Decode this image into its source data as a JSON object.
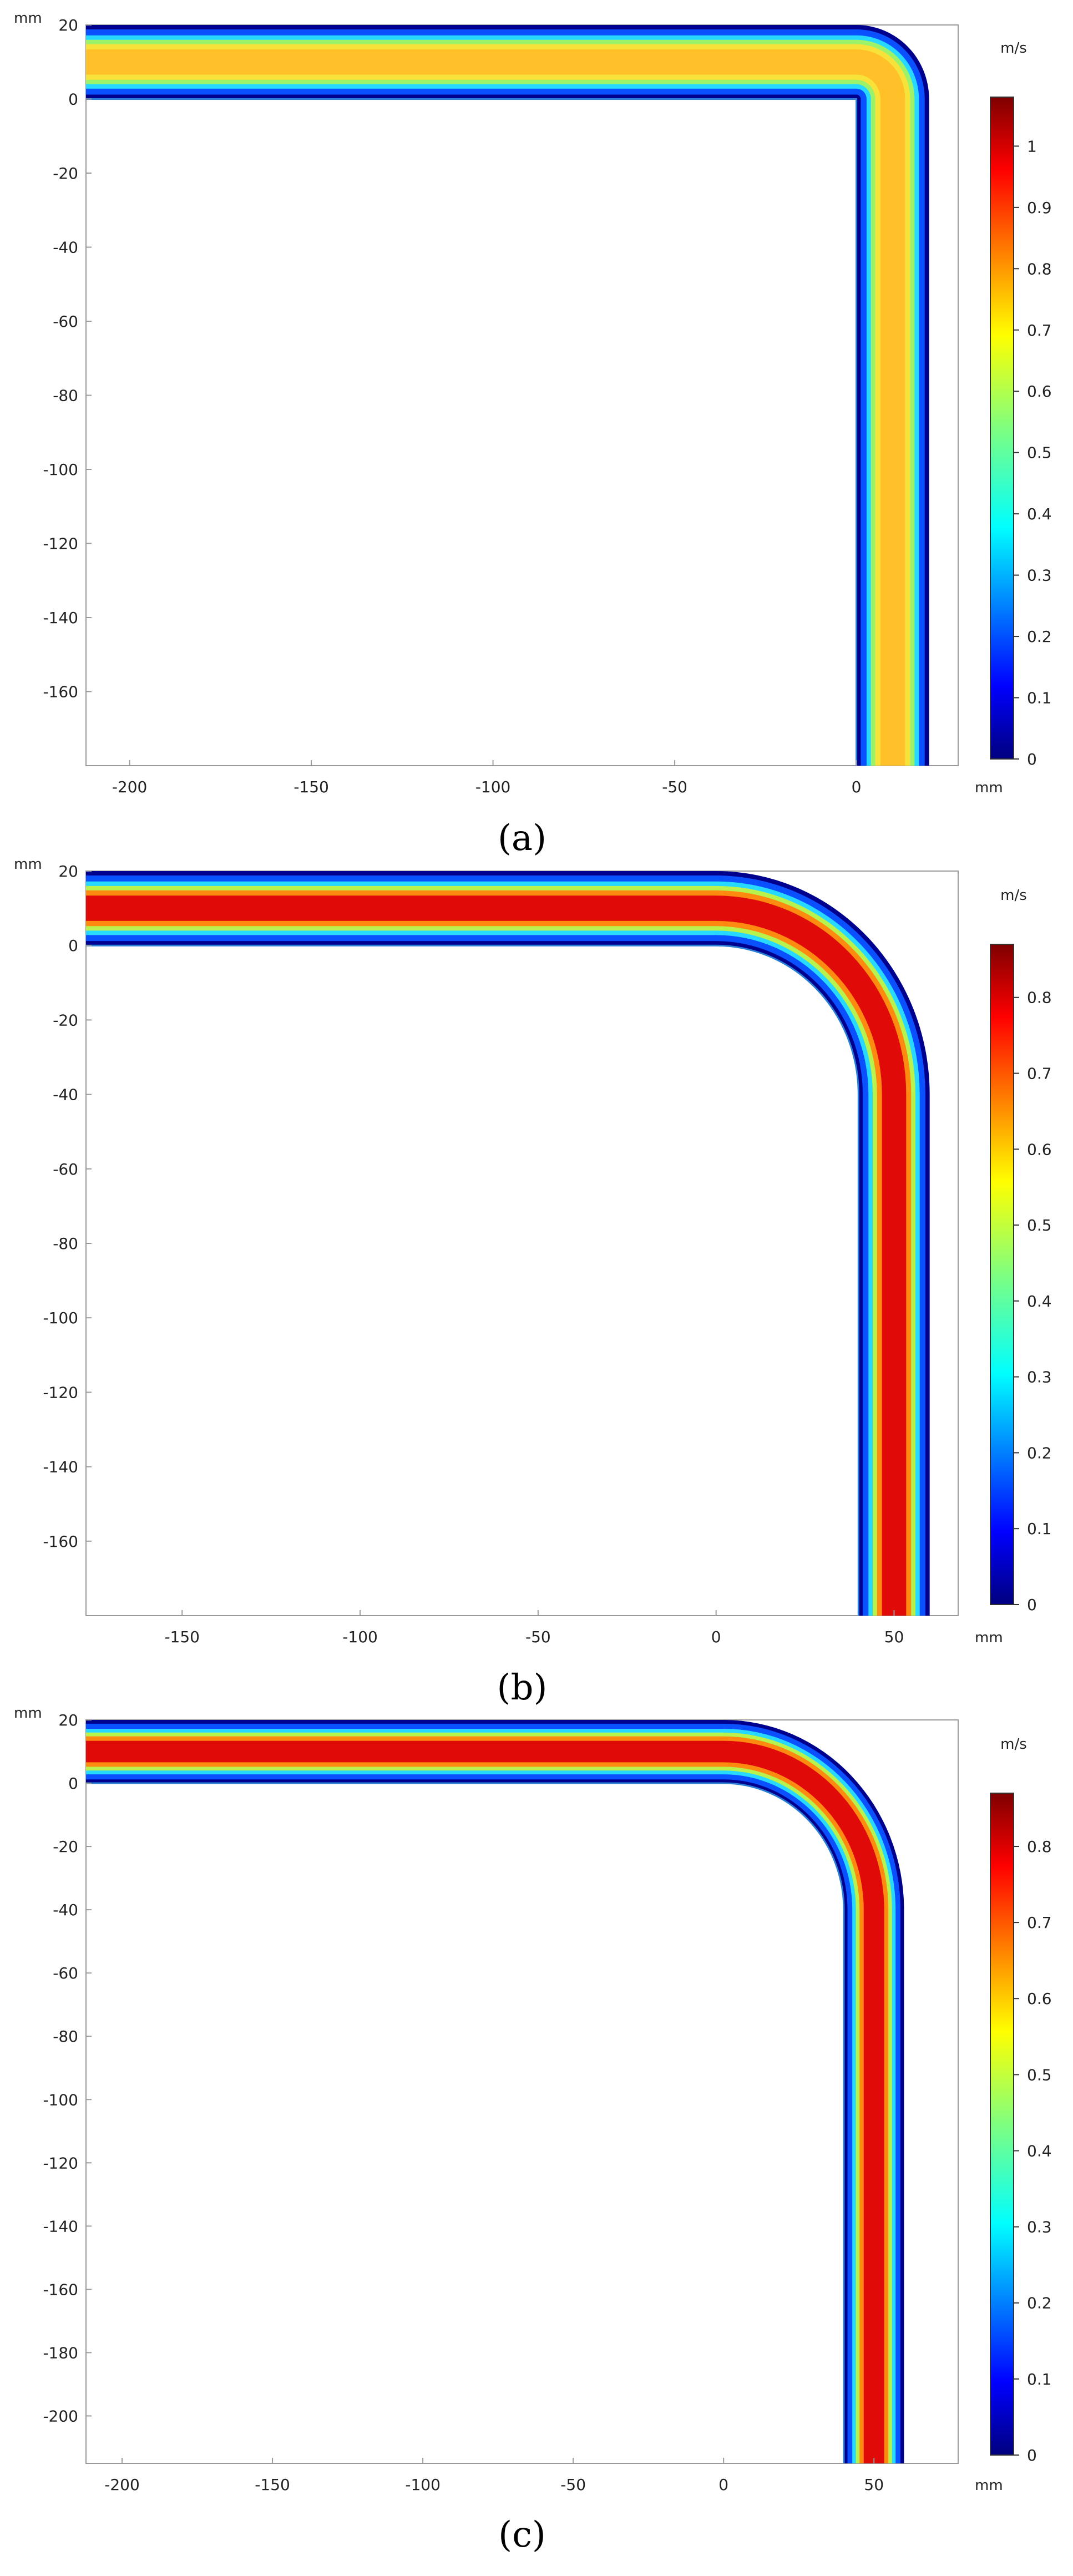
{
  "chart_data": [
    {
      "type": "heatmap",
      "caption": "(a)",
      "caption_letter": "a",
      "title": "",
      "x_unit": "mm",
      "y_unit": "mm",
      "xlim": [
        -212,
        28
      ],
      "ylim": [
        -180,
        20
      ],
      "xticks": [
        -200,
        -150,
        -100,
        -50,
        0
      ],
      "yticks": [
        20,
        0,
        -20,
        -40,
        -60,
        -80,
        -100,
        -120,
        -140,
        -160
      ],
      "colorbar": {
        "unit": "m/s",
        "min": 0,
        "max": 1.08,
        "ticks": [
          0,
          0.1,
          0.2,
          0.3,
          0.4,
          0.5,
          0.6,
          0.7,
          0.8,
          0.9,
          1
        ]
      },
      "pipe": {
        "horizontal_y": [
          0,
          20
        ],
        "vertical_x": [
          0,
          20
        ],
        "bend_radius_inner": 0,
        "bend_radius_outer": 20
      }
    },
    {
      "type": "heatmap",
      "caption": "(b)",
      "caption_letter": "b",
      "title": "",
      "x_unit": "mm",
      "y_unit": "mm",
      "xlim": [
        -177,
        68
      ],
      "ylim": [
        -180,
        20
      ],
      "xticks": [
        -150,
        -100,
        -50,
        0,
        50
      ],
      "yticks": [
        20,
        0,
        -20,
        -40,
        -60,
        -80,
        -100,
        -120,
        -140,
        -160
      ],
      "colorbar": {
        "unit": "m/s",
        "min": 0,
        "max": 0.87,
        "ticks": [
          0,
          0.1,
          0.2,
          0.3,
          0.4,
          0.5,
          0.6,
          0.7,
          0.8
        ]
      },
      "pipe": {
        "horizontal_y": [
          0,
          20
        ],
        "vertical_x": [
          40,
          60
        ],
        "bend_radius_inner": 40,
        "bend_radius_outer": 60
      }
    },
    {
      "type": "heatmap",
      "caption": "(c)",
      "caption_letter": "c",
      "title": "",
      "x_unit": "mm",
      "y_unit": "mm",
      "xlim": [
        -212,
        78
      ],
      "ylim": [
        -215,
        20
      ],
      "xticks": [
        -200,
        -150,
        -100,
        -50,
        0,
        50
      ],
      "yticks": [
        20,
        0,
        -20,
        -40,
        -60,
        -80,
        -100,
        -120,
        -140,
        -160,
        -180,
        -200
      ],
      "colorbar": {
        "unit": "m/s",
        "min": 0,
        "max": 0.87,
        "ticks": [
          0,
          0.1,
          0.2,
          0.3,
          0.4,
          0.5,
          0.6,
          0.7,
          0.8
        ]
      },
      "pipe": {
        "horizontal_y": [
          0,
          20
        ],
        "vertical_x": [
          40,
          60
        ],
        "bend_radius_inner": 40,
        "bend_radius_outer": 60
      }
    }
  ]
}
